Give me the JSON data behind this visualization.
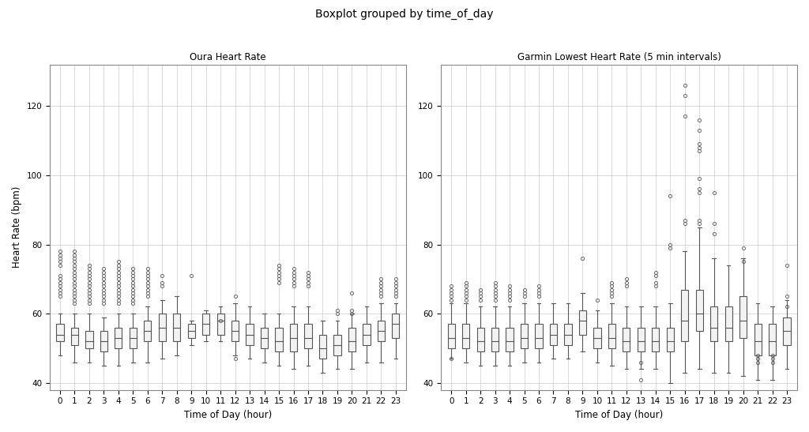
{
  "title": "Boxplot grouped by time_of_day",
  "left_title": "Oura Heart Rate",
  "right_title": "Garmin Lowest Heart Rate (5 min intervals)",
  "xlabel": "Time of Day (hour)",
  "ylabel": "Heart Rate (bpm)",
  "hours": [
    0,
    1,
    2,
    3,
    4,
    5,
    6,
    7,
    8,
    9,
    10,
    11,
    12,
    13,
    14,
    15,
    16,
    17,
    18,
    19,
    20,
    21,
    22,
    23
  ],
  "ylim": [
    38,
    132
  ],
  "yticks": [
    40,
    60,
    80,
    100,
    120
  ],
  "background_color": "#ffffff",
  "grid_color": "#cccccc",
  "box_facecolor": "#f2f2f2",
  "box_edgecolor": "#555555",
  "median_color": "#555555",
  "whisker_color": "#555555",
  "flier_color": "#555555",
  "flier_marker": "o",
  "title_fontsize": 10,
  "axis_title_fontsize": 8.5,
  "tick_fontsize": 7.5,
  "label_fontsize": 8.5,
  "seed": 42,
  "oura_stats": {
    "0": {
      "q1": 52,
      "med": 54,
      "q3": 57,
      "wlo": 48,
      "whi": 60,
      "out_hi": [
        70,
        71,
        74,
        75,
        76,
        77,
        78,
        65,
        66,
        67,
        68,
        69
      ]
    },
    "1": {
      "q1": 51,
      "med": 54,
      "q3": 56,
      "wlo": 46,
      "whi": 60,
      "out_hi": [
        63,
        64,
        65,
        66,
        67,
        68,
        69,
        70,
        71,
        72,
        73,
        74,
        75,
        76,
        77,
        78
      ]
    },
    "2": {
      "q1": 50,
      "med": 52,
      "q3": 55,
      "wlo": 46,
      "whi": 60,
      "out_hi": [
        63,
        64,
        65,
        66,
        67,
        68,
        69,
        70,
        71,
        72,
        73,
        74
      ]
    },
    "3": {
      "q1": 49,
      "med": 52,
      "q3": 55,
      "wlo": 45,
      "whi": 59,
      "out_hi": [
        63,
        64,
        65,
        66,
        67,
        68,
        69,
        70,
        71,
        72,
        73
      ]
    },
    "4": {
      "q1": 50,
      "med": 53,
      "q3": 56,
      "wlo": 45,
      "whi": 60,
      "out_hi": [
        63,
        64,
        65,
        66,
        67,
        68,
        69,
        70,
        71,
        72,
        73,
        74,
        75
      ]
    },
    "5": {
      "q1": 50,
      "med": 53,
      "q3": 56,
      "wlo": 46,
      "whi": 60,
      "out_hi": [
        63,
        64,
        65,
        66,
        67,
        68,
        69,
        70,
        71,
        72,
        73
      ]
    },
    "6": {
      "q1": 52,
      "med": 55,
      "q3": 58,
      "wlo": 46,
      "whi": 62,
      "out_hi": [
        65,
        66,
        67,
        68,
        69,
        70,
        71,
        72,
        73
      ]
    },
    "7": {
      "q1": 52,
      "med": 56,
      "q3": 60,
      "wlo": 47,
      "whi": 64,
      "out_hi": [
        68,
        69,
        71
      ]
    },
    "8": {
      "q1": 52,
      "med": 56,
      "q3": 60,
      "wlo": 48,
      "whi": 65,
      "out_hi": []
    },
    "9": {
      "q1": 53,
      "med": 55,
      "q3": 57,
      "wlo": 51,
      "whi": 58,
      "out_hi": [
        71
      ]
    },
    "10": {
      "q1": 54,
      "med": 57,
      "q3": 60,
      "wlo": 52,
      "whi": 61,
      "out_hi": []
    },
    "11": {
      "q1": 54,
      "med": 58,
      "q3": 60,
      "wlo": 52,
      "whi": 62,
      "out_hi": [
        58
      ]
    },
    "12": {
      "q1": 52,
      "med": 55,
      "q3": 58,
      "wlo": 48,
      "whi": 63,
      "out_hi": [
        65
      ],
      "out_lo": [
        47
      ]
    },
    "13": {
      "q1": 51,
      "med": 54,
      "q3": 57,
      "wlo": 47,
      "whi": 62,
      "out_hi": []
    },
    "14": {
      "q1": 50,
      "med": 53,
      "q3": 56,
      "wlo": 46,
      "whi": 60,
      "out_hi": []
    },
    "15": {
      "q1": 49,
      "med": 52,
      "q3": 56,
      "wlo": 45,
      "whi": 60,
      "out_hi": [
        69,
        70,
        71,
        72,
        73,
        74
      ]
    },
    "16": {
      "q1": 49,
      "med": 53,
      "q3": 57,
      "wlo": 44,
      "whi": 62,
      "out_hi": [
        68,
        69,
        70,
        71,
        72,
        73
      ]
    },
    "17": {
      "q1": 50,
      "med": 53,
      "q3": 57,
      "wlo": 45,
      "whi": 62,
      "out_hi": [
        68,
        69,
        70,
        71,
        72
      ]
    },
    "18": {
      "q1": 47,
      "med": 50,
      "q3": 54,
      "wlo": 43,
      "whi": 58,
      "out_hi": []
    },
    "19": {
      "q1": 48,
      "med": 51,
      "q3": 54,
      "wlo": 44,
      "whi": 58,
      "out_hi": [
        60,
        61
      ]
    },
    "20": {
      "q1": 49,
      "med": 52,
      "q3": 56,
      "wlo": 44,
      "whi": 60,
      "out_hi": [
        60,
        61,
        66
      ]
    },
    "21": {
      "q1": 51,
      "med": 54,
      "q3": 57,
      "wlo": 46,
      "whi": 62,
      "out_hi": []
    },
    "22": {
      "q1": 52,
      "med": 55,
      "q3": 58,
      "wlo": 46,
      "whi": 63,
      "out_hi": [
        65,
        66,
        67,
        68,
        69,
        70
      ]
    },
    "23": {
      "q1": 53,
      "med": 57,
      "q3": 60,
      "wlo": 47,
      "whi": 63,
      "out_hi": [
        65,
        66,
        67,
        68,
        69,
        70
      ]
    }
  },
  "garmin_stats": {
    "0": {
      "q1": 50,
      "med": 53,
      "q3": 57,
      "wlo": 47,
      "whi": 63,
      "out_hi": [
        64,
        65,
        66,
        67,
        68
      ],
      "out_lo": [
        47
      ]
    },
    "1": {
      "q1": 50,
      "med": 53,
      "q3": 57,
      "wlo": 46,
      "whi": 63,
      "out_hi": [
        64,
        65,
        66,
        67,
        68,
        69
      ]
    },
    "2": {
      "q1": 49,
      "med": 52,
      "q3": 56,
      "wlo": 45,
      "whi": 62,
      "out_hi": [
        64,
        65,
        66,
        67
      ]
    },
    "3": {
      "q1": 49,
      "med": 52,
      "q3": 56,
      "wlo": 45,
      "whi": 62,
      "out_hi": [
        64,
        65,
        66,
        67,
        68,
        69
      ]
    },
    "4": {
      "q1": 49,
      "med": 52,
      "q3": 56,
      "wlo": 45,
      "whi": 62,
      "out_hi": [
        64,
        65,
        66,
        67,
        68
      ]
    },
    "5": {
      "q1": 50,
      "med": 53,
      "q3": 57,
      "wlo": 46,
      "whi": 63,
      "out_hi": [
        65,
        66,
        67
      ]
    },
    "6": {
      "q1": 50,
      "med": 53,
      "q3": 57,
      "wlo": 46,
      "whi": 63,
      "out_hi": [
        65,
        66,
        67,
        68
      ]
    },
    "7": {
      "q1": 51,
      "med": 54,
      "q3": 57,
      "wlo": 47,
      "whi": 63,
      "out_hi": []
    },
    "8": {
      "q1": 51,
      "med": 54,
      "q3": 57,
      "wlo": 47,
      "whi": 63,
      "out_hi": []
    },
    "9": {
      "q1": 54,
      "med": 58,
      "q3": 61,
      "wlo": 49,
      "whi": 66,
      "out_hi": [
        76
      ]
    },
    "10": {
      "q1": 50,
      "med": 53,
      "q3": 56,
      "wlo": 46,
      "whi": 61,
      "out_hi": [
        64
      ]
    },
    "11": {
      "q1": 50,
      "med": 53,
      "q3": 57,
      "wlo": 45,
      "whi": 63,
      "out_hi": [
        65,
        66,
        67,
        68,
        69
      ]
    },
    "12": {
      "q1": 49,
      "med": 52,
      "q3": 56,
      "wlo": 44,
      "whi": 62,
      "out_hi": [
        68,
        69,
        70
      ]
    },
    "13": {
      "q1": 49,
      "med": 52,
      "q3": 56,
      "wlo": 44,
      "whi": 62,
      "out_hi": [],
      "out_lo": [
        41,
        46
      ]
    },
    "14": {
      "q1": 49,
      "med": 52,
      "q3": 56,
      "wlo": 44,
      "whi": 62,
      "out_hi": [
        68,
        69,
        71,
        72
      ]
    },
    "15": {
      "q1": 49,
      "med": 52,
      "q3": 56,
      "wlo": 40,
      "whi": 63,
      "out_hi": [
        79,
        80,
        94
      ]
    },
    "16": {
      "q1": 52,
      "med": 58,
      "q3": 67,
      "wlo": 43,
      "whi": 78,
      "out_hi": [
        86,
        87,
        117,
        123,
        126
      ]
    },
    "17": {
      "q1": 55,
      "med": 60,
      "q3": 67,
      "wlo": 44,
      "whi": 85,
      "out_hi": [
        86,
        87,
        95,
        96,
        99,
        107,
        108,
        109,
        113,
        116
      ]
    },
    "18": {
      "q1": 52,
      "med": 56,
      "q3": 62,
      "wlo": 43,
      "whi": 76,
      "out_hi": [
        83,
        86,
        95
      ]
    },
    "19": {
      "q1": 52,
      "med": 56,
      "q3": 62,
      "wlo": 43,
      "whi": 74,
      "out_hi": []
    },
    "20": {
      "q1": 53,
      "med": 58,
      "q3": 65,
      "wlo": 42,
      "whi": 76,
      "out_hi": [
        75,
        79
      ]
    },
    "21": {
      "q1": 48,
      "med": 52,
      "q3": 57,
      "wlo": 41,
      "whi": 63,
      "out_hi": [],
      "out_lo": [
        46,
        47,
        48
      ]
    },
    "22": {
      "q1": 48,
      "med": 52,
      "q3": 57,
      "wlo": 41,
      "whi": 62,
      "out_lo": [
        46,
        47,
        48
      ]
    },
    "23": {
      "q1": 51,
      "med": 55,
      "q3": 59,
      "wlo": 44,
      "whi": 64,
      "out_hi": [
        62,
        65,
        74
      ]
    }
  }
}
